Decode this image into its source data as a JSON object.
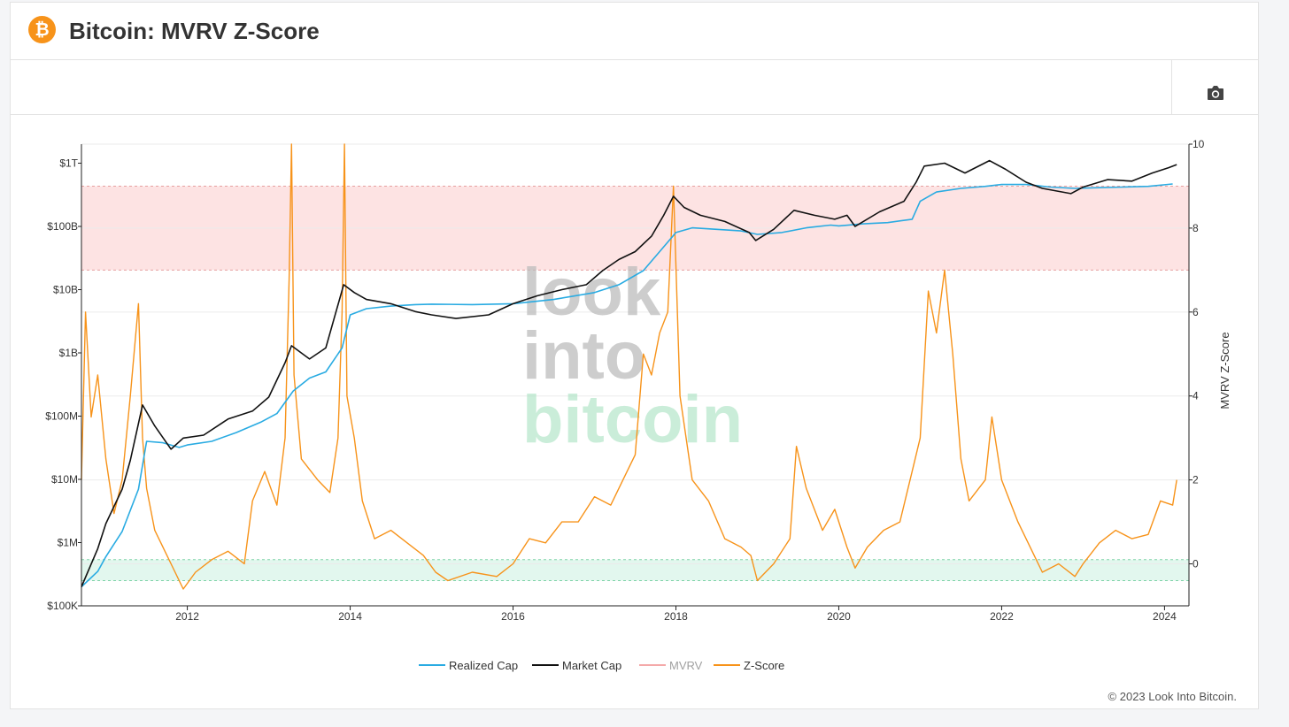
{
  "header": {
    "logo_glyph": "₿",
    "title": "Bitcoin: MVRV Z-Score"
  },
  "toolbar": {
    "camera_icon": "camera-icon"
  },
  "footer": {
    "copyright": "© 2023 Look Into Bitcoin."
  },
  "watermark": {
    "line1": "look",
    "line2": "into",
    "line3": "bitcoin"
  },
  "colors": {
    "realized_cap": "#29abe2",
    "market_cap": "#111111",
    "mvrv": "#f4a9a9",
    "zscore": "#f7931a",
    "sell_zone": "#fde3e3",
    "buy_zone": "#e2f7ee",
    "brand": "#f7931a"
  },
  "chart_data": {
    "type": "line",
    "title": "Bitcoin: MVRV Z-Score",
    "xlim": [
      2010.7,
      2024.3
    ],
    "x_ticks": [
      2012,
      2014,
      2016,
      2018,
      2020,
      2022,
      2024
    ],
    "x_tick_labels": [
      "2012",
      "2014",
      "2016",
      "2018",
      "2020",
      "2022",
      "2024"
    ],
    "y_left": {
      "scale": "log",
      "lim": [
        100000,
        2000000000000
      ],
      "ticks": [
        100000,
        1000000,
        10000000,
        100000000,
        1000000000,
        10000000000,
        100000000000,
        1000000000000
      ],
      "tick_labels": [
        "$100K",
        "$1M",
        "$10M",
        "$100M",
        "$1B",
        "$10B",
        "$100B",
        "$1T"
      ]
    },
    "y_right": {
      "label": "MVRV Z-Score",
      "lim": [
        -1,
        10
      ],
      "ticks": [
        0,
        2,
        4,
        6,
        8,
        10
      ],
      "tick_labels": [
        "0",
        "2",
        "4",
        "6",
        "8",
        "10"
      ]
    },
    "zones": [
      {
        "name": "sell",
        "from": 7,
        "to": 9
      },
      {
        "name": "buy",
        "from": -0.4,
        "to": 0.1
      }
    ],
    "legend": {
      "placement": "bottom-center",
      "entries": [
        "Realized Cap",
        "Market Cap",
        "MVRV",
        "Z-Score"
      ]
    },
    "series": [
      {
        "name": "Realized Cap",
        "axis": "left",
        "x": [
          2010.7,
          2010.9,
          2011.0,
          2011.2,
          2011.4,
          2011.5,
          2011.7,
          2011.9,
          2012.0,
          2012.3,
          2012.6,
          2012.9,
          2013.1,
          2013.3,
          2013.5,
          2013.7,
          2013.9,
          2014.0,
          2014.2,
          2014.5,
          2014.8,
          2015.0,
          2015.5,
          2016.0,
          2016.5,
          2017.0,
          2017.3,
          2017.6,
          2017.8,
          2018.0,
          2018.2,
          2018.5,
          2018.8,
          2019.0,
          2019.3,
          2019.6,
          2019.9,
          2020.0,
          2020.3,
          2020.6,
          2020.9,
          2021.0,
          2021.2,
          2021.5,
          2021.8,
          2022.0,
          2022.3,
          2022.6,
          2022.9,
          2023.2,
          2023.5,
          2023.8,
          2024.1
        ],
        "values": [
          200000,
          350000,
          600000,
          1500000,
          7000000,
          40000000,
          38000000,
          32000000,
          35000000,
          40000000,
          55000000,
          80000000,
          110000000,
          250000000,
          400000000,
          500000000,
          1200000000,
          4000000000,
          5000000000,
          5500000000,
          5800000000,
          5900000000,
          5800000000,
          6000000000,
          7000000000,
          9000000000,
          12000000000,
          20000000000,
          40000000000,
          80000000000,
          95000000000,
          90000000000,
          85000000000,
          75000000000,
          80000000000,
          95000000000,
          105000000000,
          102000000000,
          110000000000,
          115000000000,
          130000000000,
          250000000000,
          350000000000,
          400000000000,
          430000000000,
          460000000000,
          460000000000,
          420000000000,
          400000000000,
          410000000000,
          420000000000,
          430000000000,
          470000000000
        ]
      },
      {
        "name": "Market Cap",
        "axis": "left",
        "x": [
          2010.7,
          2010.9,
          2011.0,
          2011.2,
          2011.3,
          2011.45,
          2011.6,
          2011.8,
          2011.95,
          2012.2,
          2012.5,
          2012.8,
          2013.0,
          2013.2,
          2013.28,
          2013.5,
          2013.7,
          2013.92,
          2014.05,
          2014.2,
          2014.5,
          2014.8,
          2015.0,
          2015.3,
          2015.7,
          2016.0,
          2016.3,
          2016.6,
          2016.9,
          2017.1,
          2017.3,
          2017.5,
          2017.7,
          2017.85,
          2017.97,
          2018.1,
          2018.3,
          2018.6,
          2018.9,
          2018.98,
          2019.2,
          2019.45,
          2019.7,
          2019.95,
          2020.1,
          2020.2,
          2020.5,
          2020.8,
          2020.95,
          2021.05,
          2021.3,
          2021.55,
          2021.85,
          2022.05,
          2022.3,
          2022.5,
          2022.85,
          2023.0,
          2023.3,
          2023.6,
          2023.85,
          2024.05,
          2024.15
        ],
        "values": [
          200000,
          800000,
          2000000,
          7000000,
          20000000,
          150000000,
          70000000,
          30000000,
          45000000,
          50000000,
          90000000,
          120000000,
          200000000,
          700000000,
          1300000000,
          800000000,
          1200000000,
          12000000000,
          9000000000,
          7000000000,
          6000000000,
          4500000000,
          4000000000,
          3500000000,
          4000000000,
          6000000000,
          8000000000,
          10000000000,
          12000000000,
          20000000000,
          30000000000,
          40000000000,
          70000000000,
          150000000000,
          300000000000,
          200000000000,
          150000000000,
          120000000000,
          80000000000,
          60000000000,
          90000000000,
          180000000000,
          150000000000,
          130000000000,
          150000000000,
          100000000000,
          170000000000,
          250000000000,
          500000000000,
          900000000000,
          1000000000000,
          700000000000,
          1100000000000,
          800000000000,
          500000000000,
          400000000000,
          330000000000,
          420000000000,
          550000000000,
          520000000000,
          700000000000,
          850000000000,
          950000000000
        ]
      },
      {
        "name": "MVRV",
        "axis": "left",
        "x": [],
        "values": []
      },
      {
        "name": "Z-Score",
        "axis": "right",
        "x": [
          2010.7,
          2010.75,
          2010.82,
          2010.9,
          2011.0,
          2011.1,
          2011.2,
          2011.3,
          2011.4,
          2011.45,
          2011.5,
          2011.6,
          2011.8,
          2011.95,
          2012.1,
          2012.3,
          2012.5,
          2012.7,
          2012.8,
          2012.95,
          2013.1,
          2013.2,
          2013.25,
          2013.28,
          2013.31,
          2013.4,
          2013.6,
          2013.75,
          2013.85,
          2013.9,
          2013.93,
          2013.96,
          2014.05,
          2014.15,
          2014.3,
          2014.5,
          2014.7,
          2014.9,
          2015.05,
          2015.2,
          2015.5,
          2015.8,
          2016.0,
          2016.2,
          2016.4,
          2016.6,
          2016.8,
          2017.0,
          2017.2,
          2017.4,
          2017.5,
          2017.6,
          2017.7,
          2017.8,
          2017.9,
          2017.97,
          2018.05,
          2018.2,
          2018.4,
          2018.6,
          2018.8,
          2018.92,
          2019.0,
          2019.2,
          2019.4,
          2019.48,
          2019.6,
          2019.8,
          2019.95,
          2020.1,
          2020.2,
          2020.35,
          2020.55,
          2020.75,
          2020.9,
          2021.0,
          2021.1,
          2021.2,
          2021.3,
          2021.4,
          2021.5,
          2021.6,
          2021.8,
          2021.88,
          2022.0,
          2022.2,
          2022.4,
          2022.5,
          2022.7,
          2022.9,
          2023.0,
          2023.2,
          2023.4,
          2023.6,
          2023.8,
          2023.95,
          2024.1,
          2024.15
        ],
        "values": [
          2.0,
          6.0,
          3.5,
          4.5,
          2.5,
          1.2,
          2.0,
          4.0,
          6.2,
          3.0,
          1.8,
          0.8,
          0.0,
          -0.6,
          -0.2,
          0.1,
          0.3,
          0.0,
          1.5,
          2.2,
          1.4,
          3.0,
          6.8,
          10.0,
          4.5,
          2.5,
          2.0,
          1.7,
          3.0,
          6.0,
          10.0,
          4.0,
          3.0,
          1.5,
          0.6,
          0.8,
          0.5,
          0.2,
          -0.2,
          -0.4,
          -0.2,
          -0.3,
          0.0,
          0.6,
          0.5,
          1.0,
          1.0,
          1.6,
          1.4,
          2.2,
          2.6,
          5.0,
          4.5,
          5.5,
          6.0,
          9.0,
          4.0,
          2.0,
          1.5,
          0.6,
          0.4,
          0.2,
          -0.4,
          0.0,
          0.6,
          2.8,
          1.8,
          0.8,
          1.3,
          0.4,
          -0.1,
          0.4,
          0.8,
          1.0,
          2.2,
          3.0,
          6.5,
          5.5,
          7.0,
          5.0,
          2.5,
          1.5,
          2.0,
          3.5,
          2.0,
          1.0,
          0.2,
          -0.2,
          0.0,
          -0.3,
          0.0,
          0.5,
          0.8,
          0.6,
          0.7,
          1.5,
          1.4,
          2.0
        ]
      }
    ]
  }
}
